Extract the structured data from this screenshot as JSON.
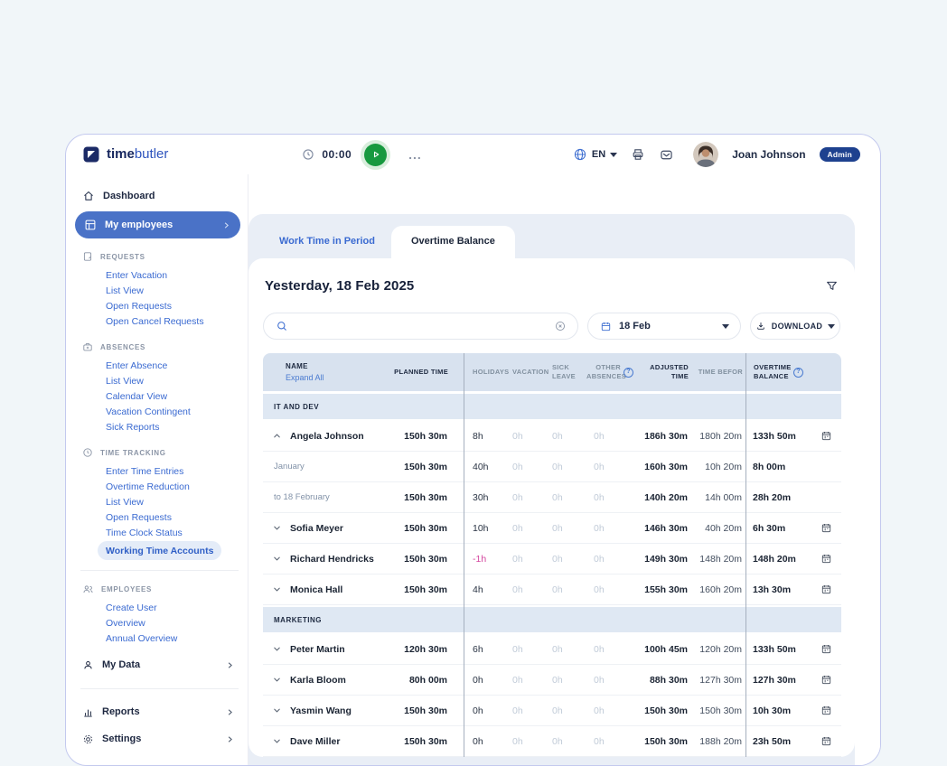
{
  "topbar": {
    "logo_time": "time",
    "logo_butler": "butler",
    "timer": "00:00",
    "menu_dots": "...",
    "lang": "EN",
    "user_name": "Joan Johnson",
    "user_role": "Admin"
  },
  "sidebar": {
    "dashboard": "Dashboard",
    "my_employees": "My employees",
    "groups": [
      {
        "label": "REQUESTS",
        "icon": "doc",
        "items": [
          {
            "label": "Enter Vacation"
          },
          {
            "label": "List View"
          },
          {
            "label": "Open Requests"
          },
          {
            "label": "Open Cancel Requests"
          }
        ]
      },
      {
        "label": "ABSENCES",
        "icon": "case",
        "items": [
          {
            "label": "Enter Absence"
          },
          {
            "label": "List View"
          },
          {
            "label": "Calendar View"
          },
          {
            "label": "Vacation Contingent"
          },
          {
            "label": "Sick Reports"
          }
        ]
      },
      {
        "label": "TIME TRACKING",
        "icon": "clock",
        "items": [
          {
            "label": "Enter Time Entries"
          },
          {
            "label": "Overtime Reduction"
          },
          {
            "label": "List View"
          },
          {
            "label": "Open Requests"
          },
          {
            "label": "Time Clock Status"
          },
          {
            "label": "Working Time Accounts",
            "active": true
          }
        ]
      },
      {
        "label": "EMPLOYEES",
        "icon": "people",
        "divider_above": true,
        "items": [
          {
            "label": "Create User"
          },
          {
            "label": "Overview"
          },
          {
            "label": "Annual Overview"
          }
        ]
      }
    ],
    "bottom": [
      {
        "label": "My Data",
        "icon": "person"
      },
      {
        "label": "Reports",
        "icon": "chart",
        "divider_above": true
      },
      {
        "label": "Settings",
        "icon": "gear"
      }
    ]
  },
  "tabs": [
    {
      "label": "Work Time in Period",
      "active": false
    },
    {
      "label": "Overtime Balance",
      "active": true
    }
  ],
  "content": {
    "title": "Yesterday, 18 Feb 2025",
    "search_placeholder": "",
    "date_value": "18 Feb",
    "download_label": "DOWNLOAD"
  },
  "table": {
    "headers": {
      "name": "NAME",
      "expand_all": "Expand All",
      "planned": "PLANNED TIME",
      "holidays": "HOLIDAYS",
      "vacation": "VACATION",
      "sick": "SICK LEAVE",
      "other": "OTHER ABSENCES",
      "adjusted": "ADJUSTED TIME",
      "before": "TIME BEFOR",
      "overtime": "OVERTIME BALANCE"
    },
    "sections": [
      {
        "name": "IT AND DEV",
        "rows": [
          {
            "name": "Angela Johnson",
            "expanded": true,
            "planned": "150h 30m",
            "holidays": "8h",
            "vacation": "0h",
            "sick": "0h",
            "other": "0h",
            "adjusted": "186h 30m",
            "before": "180h 20m",
            "overtime": "133h 50m",
            "subrows": [
              {
                "label": "January",
                "planned": "150h 30m",
                "holidays": "40h",
                "vacation": "0h",
                "sick": "0h",
                "other": "0h",
                "adjusted": "160h 30m",
                "before": "10h 20m",
                "overtime": "8h 00m"
              },
              {
                "label": "to 18 February",
                "planned": "150h 30m",
                "holidays": "30h",
                "vacation": "0h",
                "sick": "0h",
                "other": "0h",
                "adjusted": "140h 20m",
                "before": "14h 00m",
                "overtime": "28h 20m"
              }
            ]
          },
          {
            "name": "Sofia Meyer",
            "planned": "150h 30m",
            "holidays": "10h",
            "vacation": "0h",
            "sick": "0h",
            "other": "0h",
            "adjusted": "146h 30m",
            "before": "40h 20m",
            "overtime": "6h 30m"
          },
          {
            "name": "Richard Hendricks",
            "planned": "150h 30m",
            "holidays": "-1h",
            "holidays_negative": true,
            "vacation": "0h",
            "sick": "0h",
            "other": "0h",
            "adjusted": "149h 30m",
            "before": "148h 20m",
            "overtime": "148h 20m"
          },
          {
            "name": "Monica Hall",
            "planned": "150h 30m",
            "holidays": "4h",
            "vacation": "0h",
            "sick": "0h",
            "other": "0h",
            "adjusted": "155h 30m",
            "before": "160h 20m",
            "overtime": "13h 30m"
          }
        ]
      },
      {
        "name": "MARKETING",
        "rows": [
          {
            "name": "Peter Martin",
            "planned": "120h 30m",
            "holidays": "6h",
            "vacation": "0h",
            "sick": "0h",
            "other": "0h",
            "adjusted": "100h 45m",
            "before": "120h 20m",
            "overtime": "133h 50m"
          },
          {
            "name": "Karla Bloom",
            "planned": "80h 00m",
            "holidays": "0h",
            "vacation": "0h",
            "sick": "0h",
            "other": "0h",
            "adjusted": "88h 30m",
            "before": "127h 30m",
            "overtime": "127h 30m"
          },
          {
            "name": "Yasmin Wang",
            "planned": "150h 30m",
            "holidays": "0h",
            "vacation": "0h",
            "sick": "0h",
            "other": "0h",
            "adjusted": "150h 30m",
            "before": "150h 30m",
            "overtime": "10h 30m"
          },
          {
            "name": "Dave Miller",
            "planned": "150h 30m",
            "holidays": "0h",
            "vacation": "0h",
            "sick": "0h",
            "other": "0h",
            "adjusted": "150h 30m",
            "before": "188h 20m",
            "overtime": "23h 50m"
          }
        ]
      }
    ]
  }
}
